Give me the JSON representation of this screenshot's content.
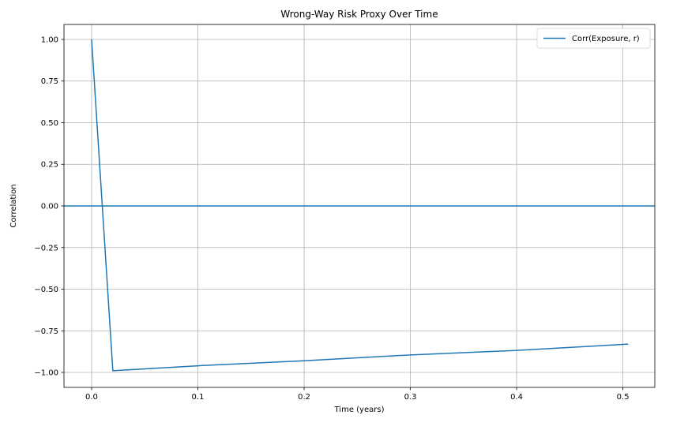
{
  "chart_data": {
    "type": "line",
    "title": "Wrong-Way Risk Proxy Over Time",
    "xlabel": "Time (years)",
    "ylabel": "Correlation",
    "xlim": [
      -0.026,
      0.53
    ],
    "ylim": [
      -1.09,
      1.09
    ],
    "xticks": [
      0.0,
      0.1,
      0.2,
      0.3,
      0.4,
      0.5
    ],
    "xtick_labels": [
      "0.0",
      "0.1",
      "0.2",
      "0.3",
      "0.4",
      "0.5"
    ],
    "yticks": [
      1.0,
      0.75,
      0.5,
      0.25,
      0.0,
      -0.25,
      -0.5,
      -0.75,
      -1.0
    ],
    "ytick_labels": [
      "1.00",
      "0.75",
      "0.50",
      "0.25",
      "0.00",
      "−0.25",
      "−0.50",
      "−0.75",
      "−1.00"
    ],
    "grid": true,
    "legend_position": "top-right",
    "series": [
      {
        "name": "Corr(Exposure, r)",
        "color": "#1f77b4",
        "x": [
          0.0,
          0.02,
          0.1,
          0.2,
          0.3,
          0.4,
          0.505
        ],
        "y": [
          1.0,
          -0.99,
          -0.96,
          -0.93,
          -0.895,
          -0.868,
          -0.83
        ]
      }
    ],
    "hlines": [
      {
        "y": 0.0,
        "color": "#1f77b4"
      }
    ]
  }
}
